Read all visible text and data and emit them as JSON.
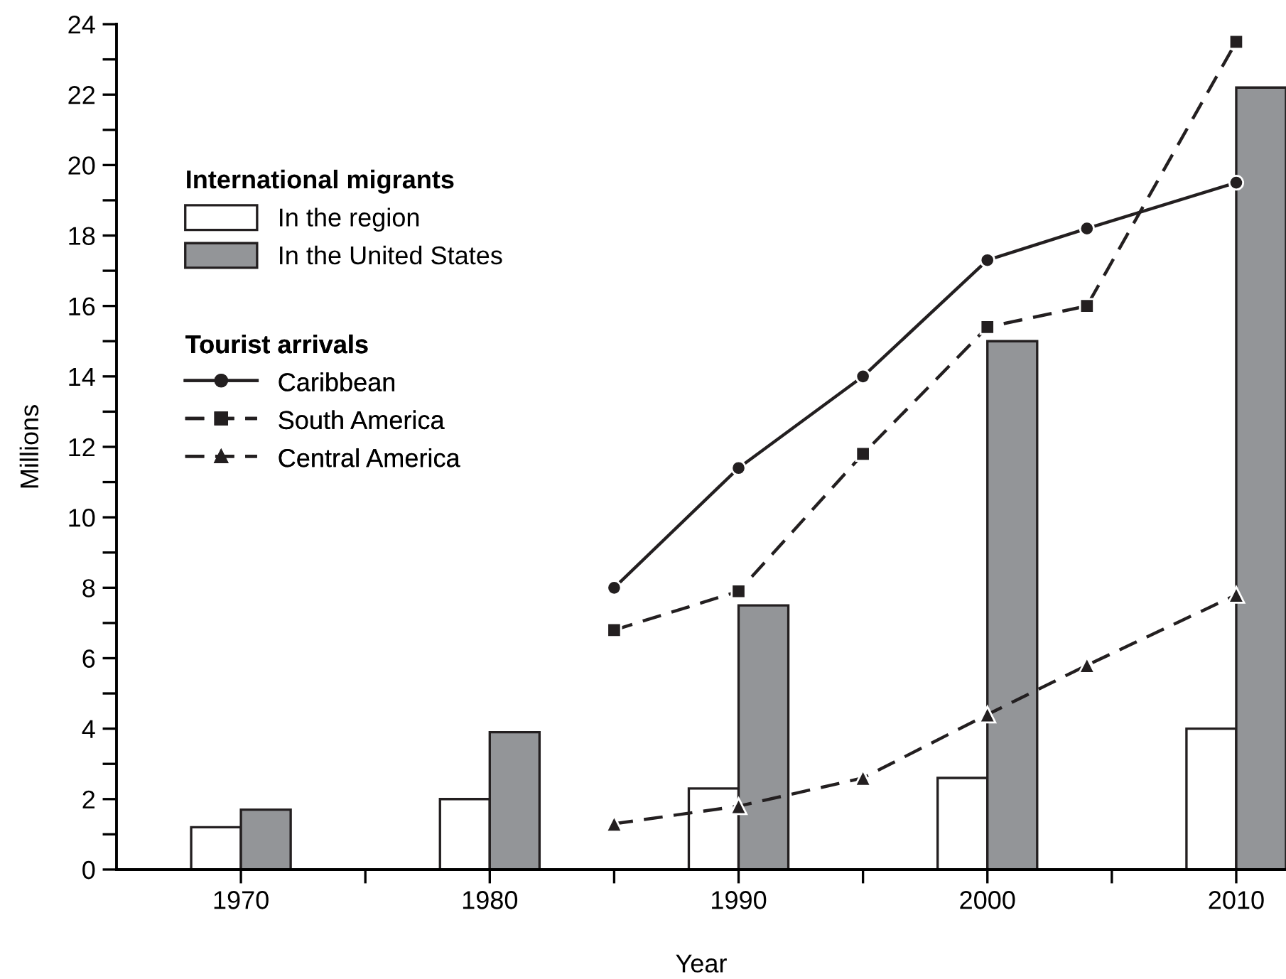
{
  "chart_data": {
    "type": "line",
    "xlabel": "Year",
    "ylabel": "Millions",
    "legend_title": [
      "International migrants",
      "Tourist arrivals"
    ],
    "series": [
      {
        "name": "In the region",
        "type": "bar",
        "color": "#ffffff",
        "x": [
          1970,
          1980,
          1990,
          2000,
          2010
        ],
        "values": [
          1.2,
          2.0,
          2.3,
          2.6,
          4.0
        ]
      },
      {
        "name": "In the United States",
        "type": "bar",
        "color": "#939598",
        "x": [
          1970,
          1980,
          1990,
          2000,
          2010
        ],
        "values": [
          1.7,
          3.9,
          7.5,
          15.0,
          22.2
        ]
      },
      {
        "name": "Caribbean",
        "color": "#231f20",
        "marker": "circle",
        "line_style": "solid",
        "x": [
          1985,
          1990,
          1995,
          2000,
          2004,
          2010
        ],
        "values": [
          8.0,
          11.4,
          14.0,
          17.3,
          18.2,
          19.5
        ]
      },
      {
        "name": "South America",
        "color": "#231f20",
        "marker": "square",
        "line_style": "dashed",
        "x": [
          1985,
          1990,
          1995,
          2000,
          2004,
          2010
        ],
        "values": [
          6.8,
          7.9,
          11.8,
          15.4,
          16.0,
          23.5
        ]
      },
      {
        "name": "Central America",
        "color": "#231f20",
        "marker": "triangle",
        "line_style": "dashed",
        "x": [
          1985,
          1990,
          1995,
          2000,
          2004,
          2010
        ],
        "values": [
          1.3,
          1.8,
          2.6,
          4.4,
          5.8,
          7.8
        ]
      }
    ],
    "xlim": [
      1965,
      2012
    ],
    "xticks": [
      1970,
      {
        "value": 1975,
        "label": null
      },
      1980,
      {
        "value": 1985,
        "label": null
      },
      1990,
      {
        "value": 1995,
        "label": null
      },
      2000,
      {
        "value": 2005,
        "label": null
      },
      2010
    ],
    "ylim": [
      0,
      24
    ],
    "yticks": [
      0,
      {
        "value": 1,
        "label": null
      },
      2,
      {
        "value": 3,
        "label": null
      },
      4,
      {
        "value": 5,
        "label": null
      },
      6,
      {
        "value": 7,
        "label": null
      },
      8,
      {
        "value": 9,
        "label": null
      },
      10,
      {
        "value": 11,
        "label": null
      },
      12,
      {
        "value": 13,
        "label": null
      },
      14,
      {
        "value": 15,
        "label": null
      },
      16,
      {
        "value": 17,
        "label": null
      },
      18,
      {
        "value": 19,
        "label": null
      },
      20,
      {
        "value": 21,
        "label": null
      },
      22,
      {
        "value": 23,
        "label": null
      },
      24
    ],
    "grid": false,
    "legend": "top left"
  }
}
